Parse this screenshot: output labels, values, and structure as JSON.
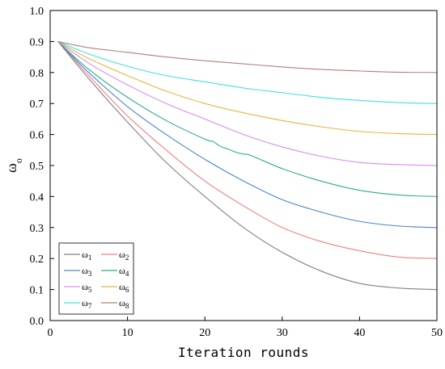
{
  "chart_data": {
    "type": "line",
    "title": "",
    "xlabel": "Iteration rounds",
    "ylabel": "ω",
    "ylabel_subscript": "o",
    "xlim": [
      0,
      50
    ],
    "ylim": [
      0.0,
      1.0
    ],
    "x_ticks": [
      "0",
      "10",
      "20",
      "30",
      "40",
      "50"
    ],
    "y_ticks": [
      "0.0",
      "0.1",
      "0.2",
      "0.3",
      "0.4",
      "0.5",
      "0.6",
      "0.7",
      "0.8",
      "0.9",
      "1.0"
    ],
    "grid": false,
    "legend": {
      "placement": "bottom-left",
      "columns": 2
    },
    "series": [
      {
        "name": "ω",
        "sub": "1",
        "color": "#808080",
        "x": [
          1,
          5,
          10,
          15,
          20,
          25,
          30,
          35,
          40,
          45,
          50
        ],
        "values": [
          0.9,
          0.78,
          0.64,
          0.51,
          0.4,
          0.3,
          0.22,
          0.16,
          0.12,
          0.105,
          0.1
        ]
      },
      {
        "name": "ω",
        "sub": "2",
        "color": "#f08080",
        "x": [
          1,
          5,
          10,
          15,
          20,
          25,
          30,
          35,
          40,
          45,
          50
        ],
        "values": [
          0.9,
          0.79,
          0.66,
          0.55,
          0.45,
          0.37,
          0.3,
          0.255,
          0.225,
          0.205,
          0.2
        ]
      },
      {
        "name": "ω",
        "sub": "3",
        "color": "#4a86c8",
        "x": [
          1,
          5,
          10,
          15,
          20,
          25,
          30,
          35,
          40,
          45,
          50
        ],
        "values": [
          0.9,
          0.8,
          0.69,
          0.6,
          0.52,
          0.45,
          0.39,
          0.35,
          0.32,
          0.305,
          0.3
        ]
      },
      {
        "name": "ω",
        "sub": "4",
        "color": "#2eaa8a",
        "x": [
          1,
          5,
          10,
          15,
          20,
          21,
          22,
          23,
          24,
          25,
          26,
          30,
          35,
          40,
          45,
          50
        ],
        "values": [
          0.9,
          0.81,
          0.72,
          0.645,
          0.585,
          0.578,
          0.562,
          0.553,
          0.543,
          0.537,
          0.532,
          0.49,
          0.45,
          0.42,
          0.405,
          0.4
        ]
      },
      {
        "name": "ω",
        "sub": "5",
        "color": "#d68cf0",
        "x": [
          1,
          5,
          10,
          15,
          20,
          25,
          30,
          35,
          40,
          45,
          50
        ],
        "values": [
          0.9,
          0.83,
          0.76,
          0.7,
          0.65,
          0.6,
          0.56,
          0.53,
          0.51,
          0.503,
          0.5
        ]
      },
      {
        "name": "ω",
        "sub": "6",
        "color": "#e6b43c",
        "x": [
          1,
          5,
          10,
          15,
          20,
          25,
          30,
          35,
          40,
          45,
          50
        ],
        "values": [
          0.9,
          0.845,
          0.79,
          0.74,
          0.7,
          0.67,
          0.645,
          0.625,
          0.61,
          0.603,
          0.6
        ]
      },
      {
        "name": "ω",
        "sub": "7",
        "color": "#40e0e0",
        "x": [
          1,
          5,
          10,
          15,
          20,
          25,
          30,
          35,
          40,
          45,
          50
        ],
        "values": [
          0.9,
          0.86,
          0.82,
          0.79,
          0.77,
          0.75,
          0.735,
          0.72,
          0.71,
          0.703,
          0.7
        ]
      },
      {
        "name": "ω",
        "sub": "8",
        "color": "#b08080",
        "x": [
          1,
          5,
          10,
          15,
          20,
          25,
          30,
          35,
          40,
          45,
          50
        ],
        "values": [
          0.9,
          0.88,
          0.865,
          0.85,
          0.838,
          0.828,
          0.818,
          0.81,
          0.805,
          0.801,
          0.8
        ]
      }
    ]
  }
}
